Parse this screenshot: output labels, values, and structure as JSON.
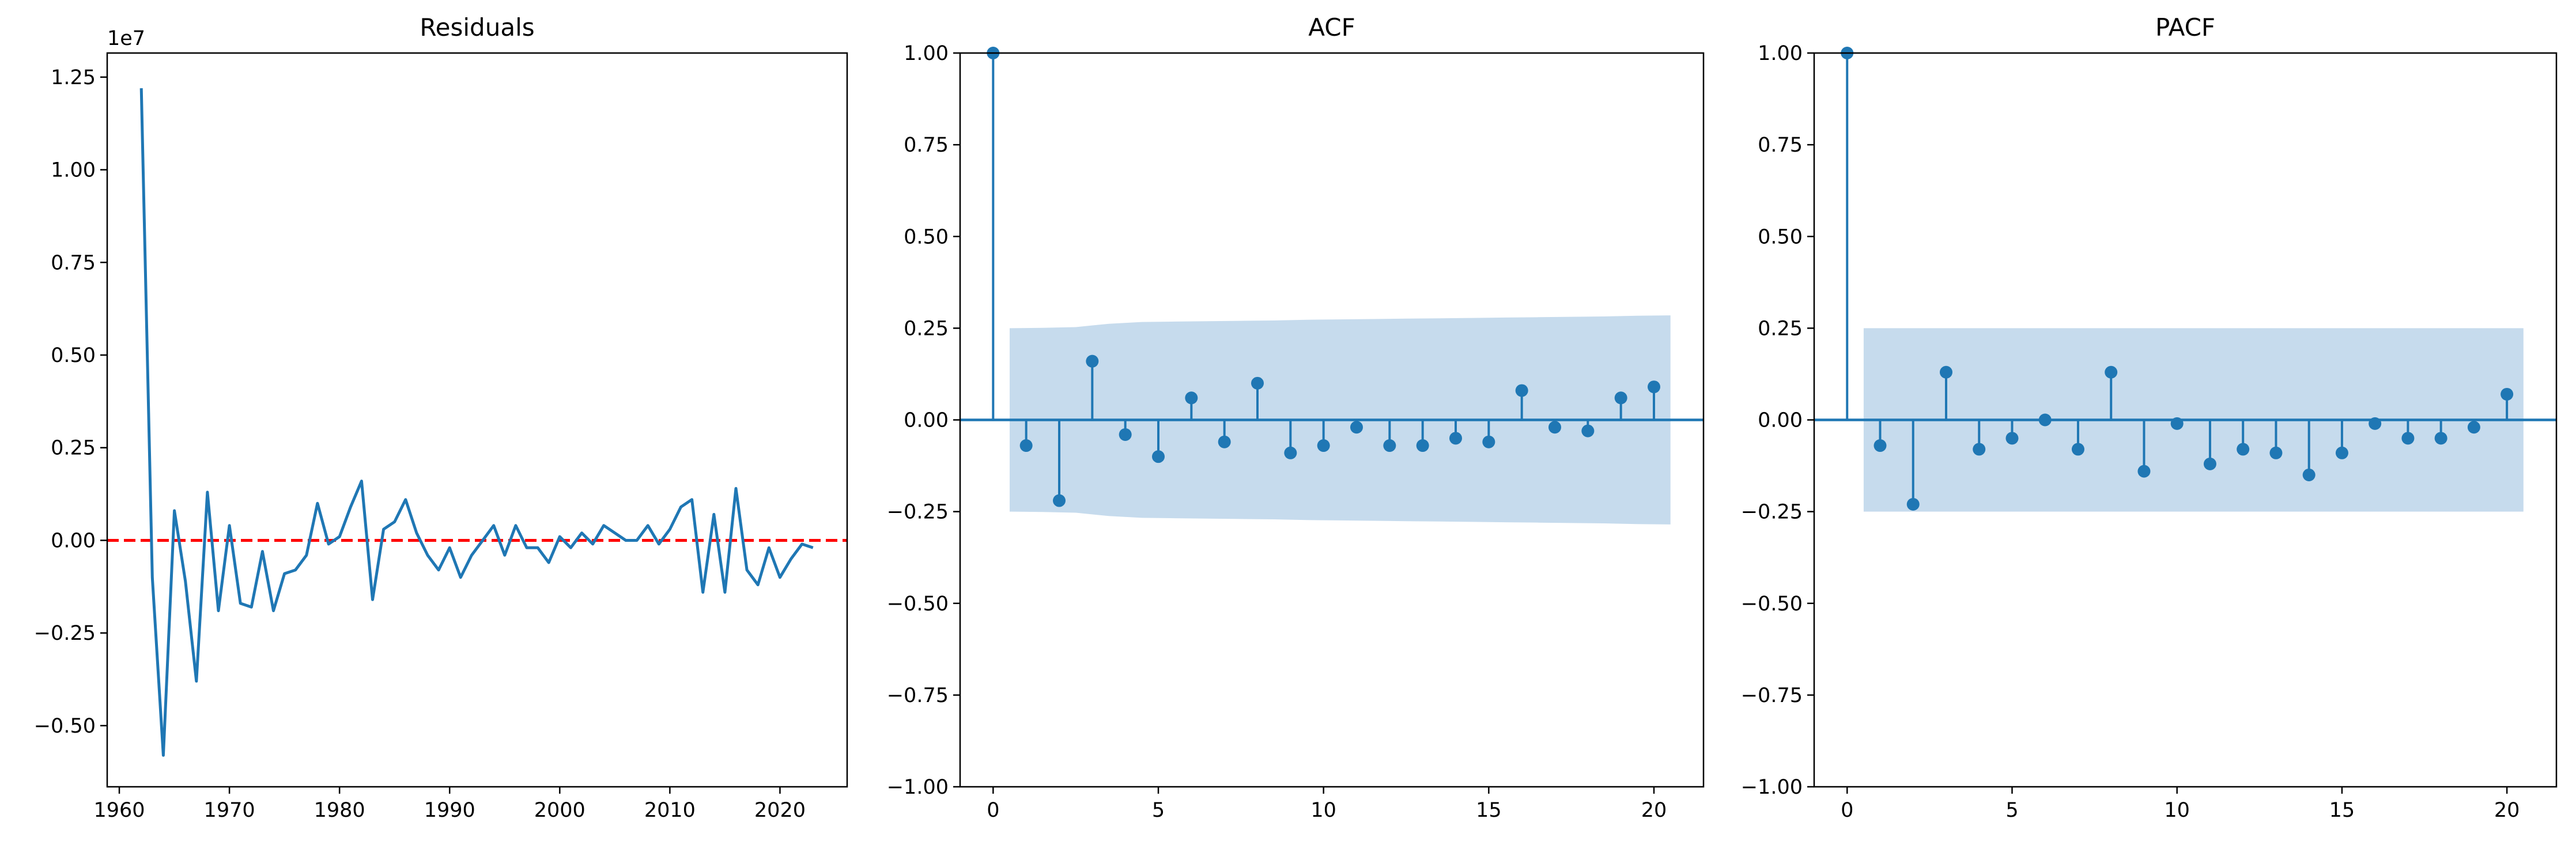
{
  "chart_data": [
    {
      "type": "line",
      "title": "Residuals",
      "xlabel": "",
      "ylabel": "",
      "offset_text": "1e7",
      "xlim": [
        1958.9,
        2026.1
      ],
      "ylim": [
        -0.665,
        1.315
      ],
      "xticks": [
        1960,
        1970,
        1980,
        1990,
        2000,
        2010,
        2020
      ],
      "yticks": [
        -0.5,
        -0.25,
        0.0,
        0.25,
        0.5,
        0.75,
        1.0,
        1.25
      ],
      "ytick_labels": [
        "−0.50",
        "−0.25",
        "0.00",
        "0.25",
        "0.50",
        "0.75",
        "1.00",
        "1.25"
      ],
      "grid": false,
      "reference_line": {
        "y": 0,
        "style": "dashed",
        "color": "#ff0000"
      },
      "line_color": "#1f77b4",
      "x": [
        1962,
        1963,
        1964,
        1965,
        1966,
        1967,
        1968,
        1969,
        1970,
        1971,
        1972,
        1973,
        1974,
        1975,
        1976,
        1977,
        1978,
        1979,
        1980,
        1981,
        1982,
        1983,
        1984,
        1985,
        1986,
        1987,
        1988,
        1989,
        1990,
        1991,
        1992,
        1993,
        1994,
        1995,
        1996,
        1997,
        1998,
        1999,
        2000,
        2001,
        2002,
        2003,
        2004,
        2005,
        2006,
        2007,
        2008,
        2009,
        2010,
        2011,
        2012,
        2013,
        2014,
        2015,
        2016,
        2017,
        2018,
        2019,
        2020,
        2021,
        2022,
        2023
      ],
      "values": [
        1.22,
        -0.1,
        -0.58,
        0.08,
        -0.11,
        -0.38,
        0.13,
        -0.19,
        0.04,
        -0.17,
        -0.18,
        -0.03,
        -0.19,
        -0.09,
        -0.08,
        -0.04,
        0.1,
        -0.01,
        0.01,
        0.09,
        0.16,
        -0.16,
        0.03,
        0.05,
        0.11,
        0.02,
        -0.04,
        -0.08,
        -0.02,
        -0.1,
        -0.04,
        0.0,
        0.04,
        -0.04,
        0.04,
        -0.02,
        -0.02,
        -0.06,
        0.01,
        -0.02,
        0.02,
        -0.01,
        0.04,
        0.02,
        0.0,
        0.0,
        0.04,
        -0.01,
        0.03,
        0.09,
        0.11,
        -0.14,
        0.07,
        -0.14,
        0.14,
        -0.08,
        -0.12,
        -0.02,
        -0.1,
        -0.05,
        -0.01,
        -0.02
      ]
    },
    {
      "type": "stem",
      "title": "ACF",
      "xlabel": "",
      "ylabel": "",
      "xlim": [
        -1.0,
        21.5
      ],
      "ylim": [
        -1.0,
        1.0
      ],
      "xticks": [
        0,
        5,
        10,
        15,
        20
      ],
      "yticks": [
        -1.0,
        -0.75,
        -0.5,
        -0.25,
        0.0,
        0.25,
        0.5,
        0.75,
        1.0
      ],
      "ytick_labels": [
        "−1.00",
        "−0.75",
        "−0.50",
        "−0.25",
        "0.00",
        "0.25",
        "0.50",
        "0.75",
        "1.00"
      ],
      "grid": false,
      "color": "#1f77b4",
      "band_color": "#c6dbed",
      "lags": [
        0,
        1,
        2,
        3,
        4,
        5,
        6,
        7,
        8,
        9,
        10,
        11,
        12,
        13,
        14,
        15,
        16,
        17,
        18,
        19,
        20
      ],
      "values": [
        1.0,
        -0.07,
        -0.22,
        0.16,
        -0.04,
        -0.1,
        0.06,
        -0.06,
        0.1,
        -0.09,
        -0.07,
        -0.02,
        -0.07,
        -0.07,
        -0.05,
        -0.06,
        0.08,
        -0.02,
        -0.03,
        0.06,
        0.09
      ],
      "confidence_band": {
        "lags": [
          0.5,
          1.5,
          2.5,
          3.5,
          4.5,
          5.5,
          6.5,
          7.5,
          8.5,
          9.5,
          10.5,
          11.5,
          12.5,
          13.5,
          14.5,
          15.5,
          16.5,
          17.5,
          18.5,
          19.5,
          20.5
        ],
        "upper": [
          0.25,
          0.251,
          0.253,
          0.262,
          0.267,
          0.268,
          0.269,
          0.27,
          0.271,
          0.273,
          0.274,
          0.275,
          0.276,
          0.277,
          0.278,
          0.279,
          0.28,
          0.281,
          0.282,
          0.284,
          0.285
        ]
      }
    },
    {
      "type": "stem",
      "title": "PACF",
      "xlabel": "",
      "ylabel": "",
      "xlim": [
        -1.0,
        21.5
      ],
      "ylim": [
        -1.0,
        1.0
      ],
      "xticks": [
        0,
        5,
        10,
        15,
        20
      ],
      "yticks": [
        -1.0,
        -0.75,
        -0.5,
        -0.25,
        0.0,
        0.25,
        0.5,
        0.75,
        1.0
      ],
      "ytick_labels": [
        "−1.00",
        "−0.75",
        "−0.50",
        "−0.25",
        "0.00",
        "0.25",
        "0.50",
        "0.75",
        "1.00"
      ],
      "grid": false,
      "color": "#1f77b4",
      "band_color": "#c6dbed",
      "lags": [
        0,
        1,
        2,
        3,
        4,
        5,
        6,
        7,
        8,
        9,
        10,
        11,
        12,
        13,
        14,
        15,
        16,
        17,
        18,
        19,
        20
      ],
      "values": [
        1.0,
        -0.07,
        -0.23,
        0.13,
        -0.08,
        -0.05,
        0.0,
        -0.08,
        0.13,
        -0.14,
        -0.01,
        -0.12,
        -0.08,
        -0.09,
        -0.15,
        -0.09,
        -0.01,
        -0.05,
        -0.05,
        -0.02,
        0.07
      ],
      "confidence_band": {
        "lags": [
          0.5,
          20.5
        ],
        "upper": [
          0.25,
          0.25
        ]
      }
    }
  ]
}
